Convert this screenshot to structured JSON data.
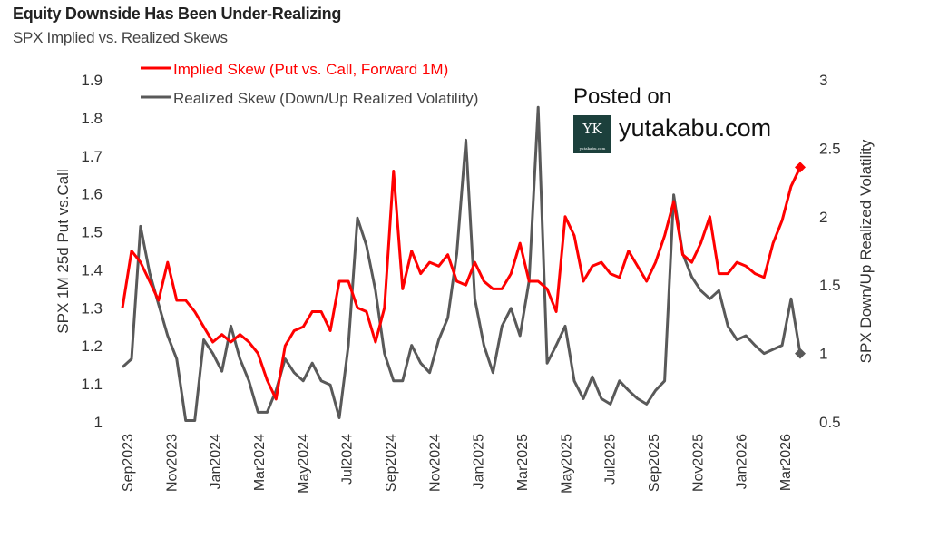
{
  "watermark": {
    "posted": "Posted on",
    "site": "yutakabu.com",
    "logo_text": "YK",
    "logo_sub": "yutakabu.com"
  },
  "chart_data": {
    "type": "line",
    "title": "Equity Downside Has Been Under-Realizing",
    "subtitle": "SPX Implied vs. Realized Skews",
    "ylabel": "SPX 1M 25d Put vs.Call",
    "y2label": "SPX Down/Up Realized Volatility",
    "ylim": [
      1,
      1.9
    ],
    "y2lim": [
      0.5,
      3
    ],
    "yticks": [
      "1",
      "1.1",
      "1.2",
      "1.3",
      "1.4",
      "1.5",
      "1.6",
      "1.7",
      "1.8",
      "1.9"
    ],
    "y2ticks": [
      "0.5",
      "1",
      "1.5",
      "2",
      "2.5",
      "3"
    ],
    "x_range": [
      "Sep 2023",
      "Apr 2026"
    ],
    "xticks": [
      "Sep2023",
      "Nov2023",
      "Jan2024",
      "Mar2024",
      "May2024",
      "Jul2024",
      "Sep2024",
      "Nov2024",
      "Jan2025",
      "Mar2025",
      "May2025",
      "Jul2025",
      "Sep2025",
      "Nov2025",
      "Jan2026",
      "Mar2026"
    ],
    "grid": false,
    "legend_position": "top-left",
    "series": [
      {
        "name": "Implied Skew (Put vs. Call, Forward 1M)",
        "axis": "left",
        "color": "#ff0000",
        "values": [
          1.3,
          1.45,
          1.42,
          1.37,
          1.32,
          1.42,
          1.32,
          1.32,
          1.29,
          1.25,
          1.21,
          1.23,
          1.21,
          1.23,
          1.21,
          1.18,
          1.11,
          1.06,
          1.2,
          1.24,
          1.25,
          1.29,
          1.29,
          1.24,
          1.37,
          1.37,
          1.3,
          1.29,
          1.21,
          1.3,
          1.66,
          1.35,
          1.45,
          1.39,
          1.42,
          1.41,
          1.44,
          1.37,
          1.36,
          1.42,
          1.37,
          1.35,
          1.35,
          1.39,
          1.47,
          1.37,
          1.37,
          1.35,
          1.29,
          1.54,
          1.49,
          1.37,
          1.41,
          1.42,
          1.39,
          1.38,
          1.45,
          1.41,
          1.37,
          1.42,
          1.49,
          1.58,
          1.44,
          1.42,
          1.47,
          1.54,
          1.39,
          1.39,
          1.42,
          1.41,
          1.39,
          1.38,
          1.47,
          1.53,
          1.62,
          1.67
        ]
      },
      {
        "name": "Realized Skew (Down/Up Realized Volatility)",
        "axis": "right",
        "color": "#595959",
        "values": [
          0.9,
          0.96,
          1.93,
          1.59,
          1.36,
          1.13,
          0.96,
          0.51,
          0.51,
          1.1,
          1.0,
          0.87,
          1.2,
          0.96,
          0.8,
          0.57,
          0.57,
          0.73,
          0.96,
          0.86,
          0.8,
          0.93,
          0.8,
          0.77,
          0.53,
          1.06,
          1.99,
          1.79,
          1.46,
          1.0,
          0.8,
          0.8,
          1.06,
          0.93,
          0.86,
          1.1,
          1.26,
          1.73,
          2.56,
          1.4,
          1.06,
          0.86,
          1.2,
          1.33,
          1.13,
          1.53,
          2.8,
          0.93,
          1.06,
          1.2,
          0.8,
          0.67,
          0.83,
          0.67,
          0.63,
          0.8,
          0.73,
          0.67,
          0.63,
          0.73,
          0.8,
          2.16,
          1.73,
          1.56,
          1.46,
          1.4,
          1.46,
          1.2,
          1.1,
          1.13,
          1.06,
          1.0,
          1.03,
          1.06,
          1.4,
          1.0
        ]
      }
    ]
  }
}
